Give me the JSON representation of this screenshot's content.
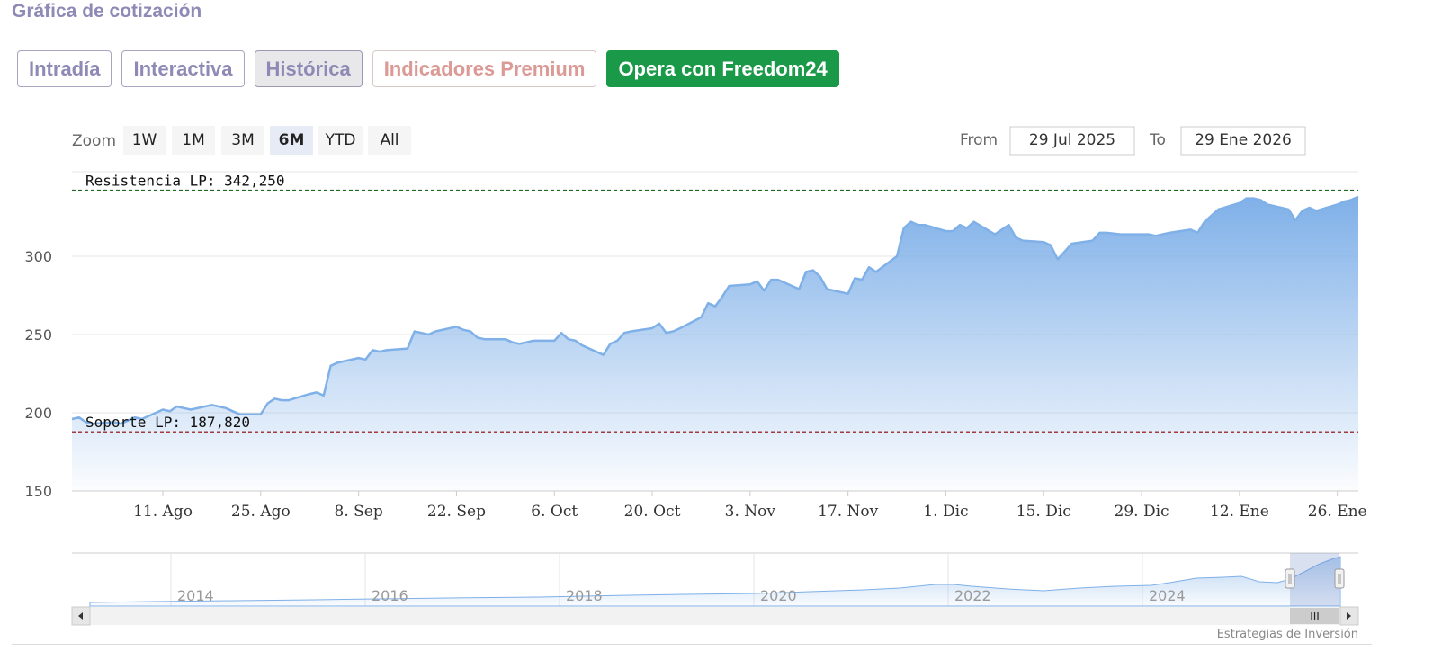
{
  "section_title": "Gráfica de cotización",
  "tabs": [
    {
      "label": "Intradía",
      "state": "normal"
    },
    {
      "label": "Interactiva",
      "state": "normal"
    },
    {
      "label": "Histórica",
      "state": "active"
    },
    {
      "label": "Indicadores Premium",
      "state": "premium"
    },
    {
      "label": "Opera con Freedom24",
      "state": "cta"
    }
  ],
  "colors": {
    "accent": "#8e8ab5",
    "cta": "#1a9a49",
    "series_line": "#7fb0e8",
    "resistance_line": "#1e6b1e",
    "support_line": "#8b0000"
  },
  "range_selector": {
    "zoom_label": "Zoom",
    "buttons": [
      "1W",
      "1M",
      "3M",
      "6M",
      "YTD",
      "All"
    ],
    "selected": "6M",
    "from_label": "From",
    "from_value": "29 Jul 2025",
    "to_label": "To",
    "to_value": "29 Ene 2026"
  },
  "annotations": {
    "resistance": "Resistencia LP: 342,250",
    "support": "Soporte LP: 187,820"
  },
  "credit": "Estrategias de Inversión",
  "navigator": {
    "year_labels": [
      "2014",
      "2016",
      "2018",
      "2020",
      "2022",
      "2024"
    ],
    "scroll_grip": "III"
  },
  "chart_data": {
    "type": "area",
    "ylim": [
      150,
      354
    ],
    "yticks": [
      150,
      200,
      250,
      300
    ],
    "x_tick_labels": [
      {
        "date": "2025-08-11",
        "label": "11. Ago"
      },
      {
        "date": "2025-08-25",
        "label": "25. Ago"
      },
      {
        "date": "2025-09-08",
        "label": "8. Sep"
      },
      {
        "date": "2025-09-22",
        "label": "22. Sep"
      },
      {
        "date": "2025-10-06",
        "label": "6. Oct"
      },
      {
        "date": "2025-10-20",
        "label": "20. Oct"
      },
      {
        "date": "2025-11-03",
        "label": "3. Nov"
      },
      {
        "date": "2025-11-17",
        "label": "17. Nov"
      },
      {
        "date": "2025-12-01",
        "label": "1. Dic"
      },
      {
        "date": "2025-12-15",
        "label": "15. Dic"
      },
      {
        "date": "2025-12-29",
        "label": "29. Dic"
      },
      {
        "date": "2026-01-12",
        "label": "12. Ene"
      },
      {
        "date": "2026-01-26",
        "label": "26. Ene"
      }
    ],
    "x_range": [
      "2025-07-29",
      "2026-01-29"
    ],
    "resistance_level": 342.25,
    "support_level": 187.82,
    "grid": true,
    "legend": "none",
    "series": [
      {
        "points": [
          [
            "2025-07-29",
            196
          ],
          [
            "2025-07-30",
            197
          ],
          [
            "2025-07-31",
            194
          ],
          [
            "2025-08-01",
            193
          ],
          [
            "2025-08-04",
            194
          ],
          [
            "2025-08-05",
            193
          ],
          [
            "2025-08-06",
            195
          ],
          [
            "2025-08-07",
            197
          ],
          [
            "2025-08-08",
            196
          ],
          [
            "2025-08-11",
            202
          ],
          [
            "2025-08-12",
            201
          ],
          [
            "2025-08-13",
            204
          ],
          [
            "2025-08-14",
            203
          ],
          [
            "2025-08-15",
            202
          ],
          [
            "2025-08-18",
            205
          ],
          [
            "2025-08-19",
            204
          ],
          [
            "2025-08-20",
            203
          ],
          [
            "2025-08-21",
            201
          ],
          [
            "2025-08-22",
            199
          ],
          [
            "2025-08-25",
            199
          ],
          [
            "2025-08-26",
            206
          ],
          [
            "2025-08-27",
            209
          ],
          [
            "2025-08-28",
            208
          ],
          [
            "2025-08-29",
            208
          ],
          [
            "2025-09-01",
            212
          ],
          [
            "2025-09-02",
            213
          ],
          [
            "2025-09-03",
            211
          ],
          [
            "2025-09-04",
            230
          ],
          [
            "2025-09-05",
            232
          ],
          [
            "2025-09-08",
            235
          ],
          [
            "2025-09-09",
            234
          ],
          [
            "2025-09-10",
            240
          ],
          [
            "2025-09-11",
            239
          ],
          [
            "2025-09-12",
            240
          ],
          [
            "2025-09-15",
            241
          ],
          [
            "2025-09-16",
            252
          ],
          [
            "2025-09-17",
            251
          ],
          [
            "2025-09-18",
            250
          ],
          [
            "2025-09-19",
            252
          ],
          [
            "2025-09-22",
            255
          ],
          [
            "2025-09-23",
            253
          ],
          [
            "2025-09-24",
            252
          ],
          [
            "2025-09-25",
            248
          ],
          [
            "2025-09-26",
            247
          ],
          [
            "2025-09-29",
            247
          ],
          [
            "2025-09-30",
            245
          ],
          [
            "2025-10-01",
            244
          ],
          [
            "2025-10-02",
            245
          ],
          [
            "2025-10-03",
            246
          ],
          [
            "2025-10-06",
            246
          ],
          [
            "2025-10-07",
            251
          ],
          [
            "2025-10-08",
            247
          ],
          [
            "2025-10-09",
            246
          ],
          [
            "2025-10-10",
            243
          ],
          [
            "2025-10-13",
            237
          ],
          [
            "2025-10-14",
            244
          ],
          [
            "2025-10-15",
            246
          ],
          [
            "2025-10-16",
            251
          ],
          [
            "2025-10-17",
            252
          ],
          [
            "2025-10-20",
            254
          ],
          [
            "2025-10-21",
            257
          ],
          [
            "2025-10-22",
            251
          ],
          [
            "2025-10-23",
            252
          ],
          [
            "2025-10-24",
            254
          ],
          [
            "2025-10-27",
            261
          ],
          [
            "2025-10-28",
            270
          ],
          [
            "2025-10-29",
            268
          ],
          [
            "2025-10-30",
            274
          ],
          [
            "2025-10-31",
            281
          ],
          [
            "2025-11-03",
            282
          ],
          [
            "2025-11-04",
            284
          ],
          [
            "2025-11-05",
            278
          ],
          [
            "2025-11-06",
            285
          ],
          [
            "2025-11-07",
            285
          ],
          [
            "2025-11-10",
            279
          ],
          [
            "2025-11-11",
            290
          ],
          [
            "2025-11-12",
            291
          ],
          [
            "2025-11-13",
            287
          ],
          [
            "2025-11-14",
            279
          ],
          [
            "2025-11-17",
            276
          ],
          [
            "2025-11-18",
            286
          ],
          [
            "2025-11-19",
            285
          ],
          [
            "2025-11-20",
            293
          ],
          [
            "2025-11-21",
            290
          ],
          [
            "2025-11-24",
            300
          ],
          [
            "2025-11-25",
            318
          ],
          [
            "2025-11-26",
            322
          ],
          [
            "2025-11-27",
            320
          ],
          [
            "2025-11-28",
            320
          ],
          [
            "2025-12-01",
            316
          ],
          [
            "2025-12-02",
            316
          ],
          [
            "2025-12-03",
            320
          ],
          [
            "2025-12-04",
            318
          ],
          [
            "2025-12-05",
            322
          ],
          [
            "2025-12-08",
            314
          ],
          [
            "2025-12-09",
            317
          ],
          [
            "2025-12-10",
            320
          ],
          [
            "2025-12-11",
            312
          ],
          [
            "2025-12-12",
            310
          ],
          [
            "2025-12-15",
            309
          ],
          [
            "2025-12-16",
            307
          ],
          [
            "2025-12-17",
            298
          ],
          [
            "2025-12-18",
            303
          ],
          [
            "2025-12-19",
            308
          ],
          [
            "2025-12-22",
            310
          ],
          [
            "2025-12-23",
            315
          ],
          [
            "2025-12-24",
            315
          ],
          [
            "2025-12-26",
            314
          ],
          [
            "2025-12-29",
            314
          ],
          [
            "2025-12-30",
            314
          ],
          [
            "2025-12-31",
            313
          ],
          [
            "2026-01-02",
            315
          ],
          [
            "2026-01-05",
            317
          ],
          [
            "2026-01-06",
            315
          ],
          [
            "2026-01-07",
            322
          ],
          [
            "2026-01-08",
            326
          ],
          [
            "2026-01-09",
            330
          ],
          [
            "2026-01-12",
            334
          ],
          [
            "2026-01-13",
            337
          ],
          [
            "2026-01-14",
            337
          ],
          [
            "2026-01-15",
            336
          ],
          [
            "2026-01-16",
            333
          ],
          [
            "2026-01-19",
            330
          ],
          [
            "2026-01-20",
            323
          ],
          [
            "2026-01-21",
            329
          ],
          [
            "2026-01-22",
            331
          ],
          [
            "2026-01-23",
            329
          ],
          [
            "2026-01-26",
            333
          ],
          [
            "2026-01-27",
            335
          ],
          [
            "2026-01-28",
            336
          ],
          [
            "2026-01-29",
            338
          ]
        ]
      }
    ]
  }
}
